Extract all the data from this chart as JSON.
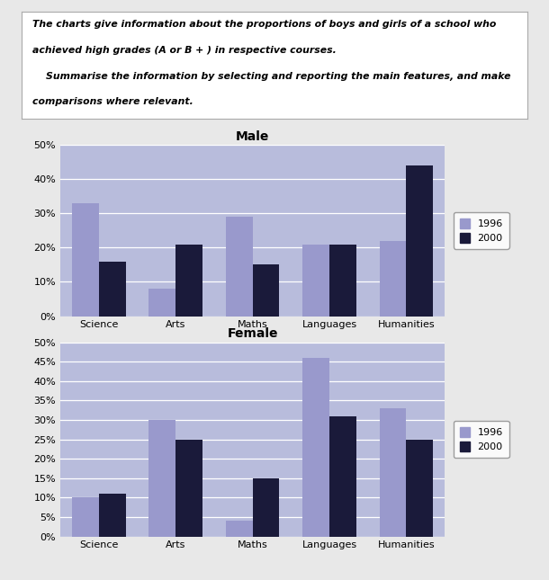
{
  "categories": [
    "Science",
    "Arts",
    "Maths",
    "Languages",
    "Humanities"
  ],
  "male_1996": [
    33,
    8,
    29,
    21,
    22
  ],
  "male_2000": [
    16,
    21,
    15,
    21,
    44
  ],
  "female_1996": [
    10,
    30,
    4,
    46,
    33
  ],
  "female_2000": [
    11,
    25,
    15,
    31,
    25
  ],
  "male_yticks": [
    0,
    10,
    20,
    30,
    40,
    50
  ],
  "female_yticks": [
    0,
    5,
    10,
    15,
    20,
    25,
    30,
    35,
    40,
    45,
    50
  ],
  "bar_color_1996": "#9999cc",
  "bar_color_2000": "#1a1a3a",
  "bar_width": 0.35,
  "male_title": "Male",
  "female_title": "Female",
  "legend_labels": [
    "1996",
    "2000"
  ],
  "text_box_line1": "The charts give information about the proportions of boys and girls of a school who",
  "text_box_line2": "achieved high grades (A or B + ) in respective courses.",
  "text_box_line3": "    Summarise the information by selecting and reporting the main features, and make",
  "text_box_line4": "comparisons where relevant.",
  "fig_bg_color": "#e8e8e8",
  "chart_bg_color": "#b8bcdc",
  "grid_color": "#d0d4f0",
  "text_box_bg": "#ffffff"
}
